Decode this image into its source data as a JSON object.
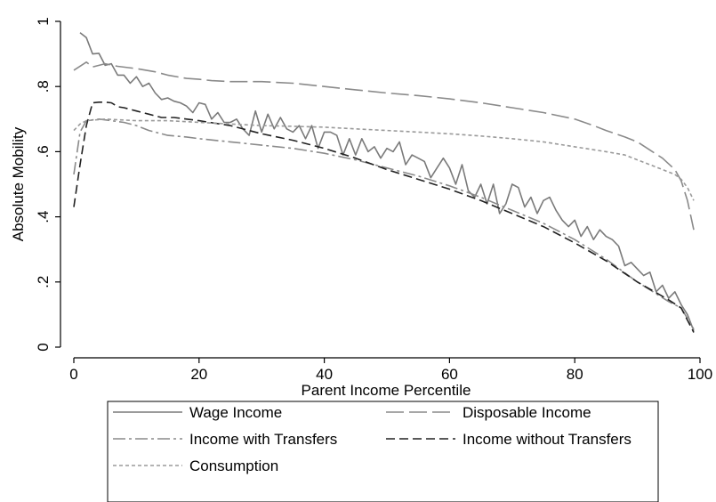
{
  "chart_data": {
    "type": "line",
    "title": "",
    "xlabel": "Parent Income Percentile",
    "ylabel": "Absolute Mobility",
    "xlim": [
      0,
      100
    ],
    "ylim": [
      0,
      1
    ],
    "xticks": [
      0,
      20,
      40,
      60,
      80,
      100
    ],
    "xtick_labels": [
      "0",
      "20",
      "40",
      "60",
      "80",
      "100"
    ],
    "yticks": [
      0,
      0.2,
      0.4,
      0.6,
      0.8,
      1
    ],
    "ytick_labels": [
      "0",
      ".2",
      ".4",
      ".6",
      ".8",
      "1"
    ],
    "grid": false,
    "legend": {
      "placement": "bottom",
      "rows": [
        [
          "Wage Income",
          "Disposable Income"
        ],
        [
          "Income with Transfers",
          "Income without Transfers"
        ],
        [
          "Consumption"
        ]
      ]
    },
    "series": [
      {
        "name": "Wage Income",
        "color": "#7a7a7a",
        "dash": "solid",
        "points": [
          [
            1,
            0.965
          ],
          [
            2,
            0.95
          ],
          [
            3,
            0.9
          ],
          [
            4,
            0.902
          ],
          [
            5,
            0.865
          ],
          [
            6,
            0.87
          ],
          [
            7,
            0.835
          ],
          [
            8,
            0.835
          ],
          [
            9,
            0.81
          ],
          [
            10,
            0.83
          ],
          [
            11,
            0.8
          ],
          [
            12,
            0.81
          ],
          [
            13,
            0.78
          ],
          [
            14,
            0.76
          ],
          [
            15,
            0.765
          ],
          [
            16,
            0.755
          ],
          [
            17,
            0.75
          ],
          [
            18,
            0.74
          ],
          [
            19,
            0.72
          ],
          [
            20,
            0.75
          ],
          [
            21,
            0.745
          ],
          [
            22,
            0.7
          ],
          [
            23,
            0.72
          ],
          [
            24,
            0.69
          ],
          [
            25,
            0.69
          ],
          [
            26,
            0.7
          ],
          [
            27,
            0.67
          ],
          [
            28,
            0.65
          ],
          [
            29,
            0.725
          ],
          [
            30,
            0.66
          ],
          [
            31,
            0.715
          ],
          [
            32,
            0.67
          ],
          [
            33,
            0.705
          ],
          [
            34,
            0.67
          ],
          [
            35,
            0.66
          ],
          [
            36,
            0.68
          ],
          [
            37,
            0.64
          ],
          [
            38,
            0.68
          ],
          [
            39,
            0.61
          ],
          [
            40,
            0.66
          ],
          [
            41,
            0.66
          ],
          [
            42,
            0.65
          ],
          [
            43,
            0.59
          ],
          [
            44,
            0.64
          ],
          [
            45,
            0.59
          ],
          [
            46,
            0.64
          ],
          [
            47,
            0.6
          ],
          [
            48,
            0.615
          ],
          [
            49,
            0.58
          ],
          [
            50,
            0.61
          ],
          [
            51,
            0.6
          ],
          [
            52,
            0.63
          ],
          [
            53,
            0.56
          ],
          [
            54,
            0.59
          ],
          [
            55,
            0.58
          ],
          [
            56,
            0.57
          ],
          [
            57,
            0.52
          ],
          [
            58,
            0.55
          ],
          [
            59,
            0.58
          ],
          [
            60,
            0.55
          ],
          [
            61,
            0.5
          ],
          [
            62,
            0.56
          ],
          [
            63,
            0.48
          ],
          [
            64,
            0.46
          ],
          [
            65,
            0.5
          ],
          [
            66,
            0.44
          ],
          [
            67,
            0.5
          ],
          [
            68,
            0.41
          ],
          [
            69,
            0.44
          ],
          [
            70,
            0.5
          ],
          [
            71,
            0.49
          ],
          [
            72,
            0.43
          ],
          [
            73,
            0.46
          ],
          [
            74,
            0.41
          ],
          [
            75,
            0.45
          ],
          [
            76,
            0.46
          ],
          [
            77,
            0.42
          ],
          [
            78,
            0.39
          ],
          [
            79,
            0.37
          ],
          [
            80,
            0.39
          ],
          [
            81,
            0.34
          ],
          [
            82,
            0.37
          ],
          [
            83,
            0.33
          ],
          [
            84,
            0.36
          ],
          [
            85,
            0.34
          ],
          [
            86,
            0.33
          ],
          [
            87,
            0.31
          ],
          [
            88,
            0.25
          ],
          [
            89,
            0.26
          ],
          [
            90,
            0.24
          ],
          [
            91,
            0.22
          ],
          [
            92,
            0.23
          ],
          [
            93,
            0.17
          ],
          [
            94,
            0.19
          ],
          [
            95,
            0.15
          ],
          [
            96,
            0.17
          ],
          [
            97,
            0.13
          ],
          [
            98,
            0.1
          ],
          [
            99,
            0.05
          ]
        ]
      },
      {
        "name": "Disposable Income",
        "color": "#8a8a8a",
        "dash": "20 6",
        "points": [
          [
            0,
            0.85
          ],
          [
            2,
            0.875
          ],
          [
            3,
            0.86
          ],
          [
            5,
            0.87
          ],
          [
            7,
            0.862
          ],
          [
            10,
            0.855
          ],
          [
            13,
            0.845
          ],
          [
            15,
            0.835
          ],
          [
            18,
            0.825
          ],
          [
            20,
            0.822
          ],
          [
            22,
            0.818
          ],
          [
            25,
            0.815
          ],
          [
            30,
            0.815
          ],
          [
            35,
            0.81
          ],
          [
            40,
            0.8
          ],
          [
            45,
            0.79
          ],
          [
            50,
            0.78
          ],
          [
            55,
            0.772
          ],
          [
            60,
            0.762
          ],
          [
            65,
            0.75
          ],
          [
            70,
            0.735
          ],
          [
            75,
            0.72
          ],
          [
            80,
            0.7
          ],
          [
            83,
            0.68
          ],
          [
            85,
            0.665
          ],
          [
            88,
            0.645
          ],
          [
            90,
            0.63
          ],
          [
            92,
            0.605
          ],
          [
            94,
            0.58
          ],
          [
            96,
            0.545
          ],
          [
            97,
            0.51
          ],
          [
            98,
            0.45
          ],
          [
            99,
            0.36
          ]
        ]
      },
      {
        "name": "Income with Transfers",
        "color": "#8a8a8a",
        "dash": "14 4 3 4",
        "points": [
          [
            0,
            0.53
          ],
          [
            1,
            0.66
          ],
          [
            2,
            0.695
          ],
          [
            4,
            0.7
          ],
          [
            6,
            0.695
          ],
          [
            8,
            0.69
          ],
          [
            10,
            0.68
          ],
          [
            12,
            0.665
          ],
          [
            15,
            0.65
          ],
          [
            18,
            0.645
          ],
          [
            20,
            0.64
          ],
          [
            25,
            0.63
          ],
          [
            30,
            0.62
          ],
          [
            35,
            0.61
          ],
          [
            40,
            0.595
          ],
          [
            45,
            0.575
          ],
          [
            50,
            0.55
          ],
          [
            55,
            0.525
          ],
          [
            60,
            0.495
          ],
          [
            65,
            0.46
          ],
          [
            70,
            0.42
          ],
          [
            75,
            0.38
          ],
          [
            80,
            0.33
          ],
          [
            85,
            0.27
          ],
          [
            90,
            0.2
          ],
          [
            95,
            0.14
          ],
          [
            97,
            0.12
          ],
          [
            99,
            0.055
          ]
        ]
      },
      {
        "name": "Income without Transfers",
        "color": "#222222",
        "dash": "10 5",
        "points": [
          [
            0,
            0.43
          ],
          [
            1,
            0.56
          ],
          [
            2,
            0.68
          ],
          [
            3,
            0.75
          ],
          [
            4,
            0.752
          ],
          [
            5,
            0.752
          ],
          [
            6,
            0.75
          ],
          [
            7,
            0.738
          ],
          [
            8,
            0.735
          ],
          [
            10,
            0.725
          ],
          [
            12,
            0.715
          ],
          [
            14,
            0.705
          ],
          [
            16,
            0.705
          ],
          [
            18,
            0.7
          ],
          [
            20,
            0.695
          ],
          [
            25,
            0.68
          ],
          [
            30,
            0.655
          ],
          [
            35,
            0.635
          ],
          [
            40,
            0.61
          ],
          [
            45,
            0.58
          ],
          [
            50,
            0.545
          ],
          [
            55,
            0.515
          ],
          [
            60,
            0.485
          ],
          [
            65,
            0.45
          ],
          [
            70,
            0.41
          ],
          [
            75,
            0.37
          ],
          [
            80,
            0.32
          ],
          [
            85,
            0.265
          ],
          [
            90,
            0.2
          ],
          [
            95,
            0.145
          ],
          [
            97,
            0.12
          ],
          [
            99,
            0.045
          ]
        ]
      },
      {
        "name": "Consumption",
        "color": "#9a9a9a",
        "dash": "4 3",
        "points": [
          [
            0,
            0.665
          ],
          [
            1,
            0.685
          ],
          [
            2,
            0.695
          ],
          [
            5,
            0.7
          ],
          [
            10,
            0.695
          ],
          [
            15,
            0.695
          ],
          [
            20,
            0.69
          ],
          [
            25,
            0.685
          ],
          [
            30,
            0.68
          ],
          [
            35,
            0.678
          ],
          [
            40,
            0.675
          ],
          [
            45,
            0.67
          ],
          [
            50,
            0.665
          ],
          [
            55,
            0.66
          ],
          [
            60,
            0.655
          ],
          [
            65,
            0.648
          ],
          [
            70,
            0.64
          ],
          [
            75,
            0.63
          ],
          [
            80,
            0.615
          ],
          [
            85,
            0.6
          ],
          [
            88,
            0.59
          ],
          [
            90,
            0.575
          ],
          [
            92,
            0.56
          ],
          [
            94,
            0.545
          ],
          [
            96,
            0.53
          ],
          [
            97,
            0.515
          ],
          [
            98,
            0.49
          ],
          [
            99,
            0.45
          ]
        ]
      }
    ]
  }
}
